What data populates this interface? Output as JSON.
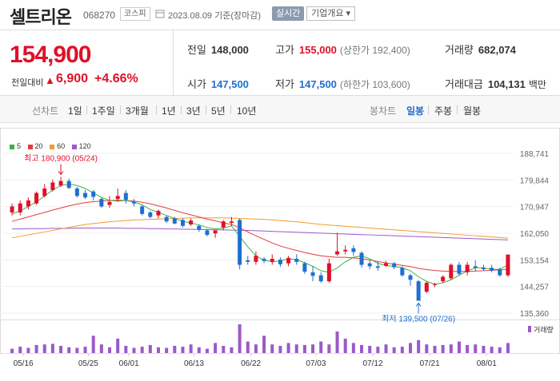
{
  "header": {
    "name": "셀트리온",
    "code": "068270",
    "market": "코스피",
    "as_of": "2023.08.09  기준(장마감)",
    "realtime": "실시간",
    "company_overview": "기업개요 ▾"
  },
  "quote": {
    "price": "154,900",
    "change_label": "전일대비",
    "change_arrow": "▲",
    "change_value": "6,900",
    "change_pct": "+4.66%",
    "prev_label": "전일",
    "prev": "148,000",
    "high_label": "고가",
    "high": "155,000",
    "upper_label": "(상한가 192,400)",
    "volume_label": "거래량",
    "volume": "682,074",
    "open_label": "시가",
    "open": "147,500",
    "low_label": "저가",
    "low": "147,500",
    "lower_label": "(하한가 103,600)",
    "amount_label": "거래대금",
    "amount": "104,131",
    "amount_unit": "백만"
  },
  "tabs": {
    "line_label": "선차트",
    "line_periods": [
      "1일",
      "1주일",
      "3개월",
      "1년",
      "3년",
      "5년",
      "10년"
    ],
    "candle_label": "봉차트",
    "candle_periods": [
      "일봉",
      "주봉",
      "월봉"
    ],
    "active_candle": "일봉"
  },
  "legend": [
    {
      "label": "5",
      "color": "#3cb043"
    },
    {
      "label": "20",
      "color": "#e83a3a"
    },
    {
      "label": "60",
      "color": "#f29b2e"
    },
    {
      "label": "120",
      "color": "#9b59c9"
    }
  ],
  "volume_legend": "거래량",
  "colors": {
    "up": "#e0102a",
    "down": "#1e6fd0"
  },
  "chart_data": {
    "type": "candlestick",
    "y_ticks": [
      "188,741",
      "179,844",
      "170,947",
      "162,050",
      "153,154",
      "144,257",
      "135,360"
    ],
    "ylim": [
      135360,
      188741
    ],
    "x_ticks": [
      "05/16",
      "05/25",
      "06/01",
      "06/13",
      "06/22",
      "07/03",
      "07/12",
      "07/21",
      "08/01"
    ],
    "max_annotation": "최고 180,900 (05/24)",
    "min_annotation": "최저 139,500 (07/26)",
    "candles": [
      {
        "o": 169000,
        "h": 172000,
        "c": 171000,
        "l": 168000
      },
      {
        "o": 169000,
        "h": 173000,
        "c": 172000,
        "l": 168000
      },
      {
        "o": 171000,
        "h": 174000,
        "c": 173000,
        "l": 170000
      },
      {
        "o": 172000,
        "h": 176000,
        "c": 175500,
        "l": 171500
      },
      {
        "o": 174500,
        "h": 178500,
        "c": 177000,
        "l": 174000
      },
      {
        "o": 176500,
        "h": 180000,
        "c": 179000,
        "l": 176000
      },
      {
        "o": 178000,
        "h": 180900,
        "c": 179500,
        "l": 177500
      },
      {
        "o": 179500,
        "h": 180300,
        "c": 177200,
        "l": 176800
      },
      {
        "o": 177000,
        "h": 177500,
        "c": 174500,
        "l": 174000
      },
      {
        "o": 175500,
        "h": 176500,
        "c": 174000,
        "l": 173500
      },
      {
        "o": 176000,
        "h": 176500,
        "c": 174200,
        "l": 173000
      },
      {
        "o": 173500,
        "h": 174000,
        "c": 171000,
        "l": 170500
      },
      {
        "o": 171500,
        "h": 174500,
        "c": 172500,
        "l": 170500
      },
      {
        "o": 173500,
        "h": 177000,
        "c": 174500,
        "l": 172500
      },
      {
        "o": 175500,
        "h": 176500,
        "c": 173200,
        "l": 172000
      },
      {
        "o": 172500,
        "h": 173500,
        "c": 172000,
        "l": 171000
      },
      {
        "o": 171000,
        "h": 171500,
        "c": 168500,
        "l": 168000
      },
      {
        "o": 169000,
        "h": 169500,
        "c": 167500,
        "l": 167000
      },
      {
        "o": 168000,
        "h": 170000,
        "c": 169500,
        "l": 167000
      },
      {
        "o": 167500,
        "h": 168000,
        "c": 166000,
        "l": 165500
      },
      {
        "o": 167000,
        "h": 167500,
        "c": 165300,
        "l": 165000
      },
      {
        "o": 166500,
        "h": 167000,
        "c": 164500,
        "l": 164000
      },
      {
        "o": 165000,
        "h": 167000,
        "c": 166300,
        "l": 164500
      },
      {
        "o": 164500,
        "h": 165000,
        "c": 163200,
        "l": 162500
      },
      {
        "o": 163000,
        "h": 163500,
        "c": 161500,
        "l": 161000
      },
      {
        "o": 162000,
        "h": 163000,
        "c": 163000,
        "l": 160500
      },
      {
        "o": 164000,
        "h": 166500,
        "c": 166000,
        "l": 163000
      },
      {
        "o": 165500,
        "h": 167500,
        "c": 166000,
        "l": 164500
      },
      {
        "o": 166500,
        "h": 167000,
        "c": 151500,
        "l": 150000
      },
      {
        "o": 153000,
        "h": 154500,
        "c": 152500,
        "l": 151500
      },
      {
        "o": 152500,
        "h": 156000,
        "c": 154500,
        "l": 151500
      },
      {
        "o": 153500,
        "h": 154000,
        "c": 152800,
        "l": 152000
      },
      {
        "o": 152500,
        "h": 155000,
        "c": 153500,
        "l": 151500
      },
      {
        "o": 153200,
        "h": 154000,
        "c": 151700,
        "l": 150800
      },
      {
        "o": 152000,
        "h": 154500,
        "c": 153800,
        "l": 151000
      },
      {
        "o": 153500,
        "h": 155000,
        "c": 152500,
        "l": 151500
      },
      {
        "o": 152000,
        "h": 152500,
        "c": 149200,
        "l": 148500
      },
      {
        "o": 149000,
        "h": 151000,
        "c": 147800,
        "l": 146000
      },
      {
        "o": 148000,
        "h": 149000,
        "c": 146000,
        "l": 145500
      },
      {
        "o": 146000,
        "h": 153500,
        "c": 152000,
        "l": 145500
      },
      {
        "o": 155000,
        "h": 162200,
        "c": 156000,
        "l": 154500
      },
      {
        "o": 156000,
        "h": 158000,
        "c": 156500,
        "l": 155000
      },
      {
        "o": 157000,
        "h": 158000,
        "c": 155800,
        "l": 154500
      },
      {
        "o": 155500,
        "h": 156000,
        "c": 151500,
        "l": 150500
      },
      {
        "o": 152000,
        "h": 153000,
        "c": 151000,
        "l": 150000
      },
      {
        "o": 151000,
        "h": 152500,
        "c": 150500,
        "l": 149500
      },
      {
        "o": 151200,
        "h": 152800,
        "c": 152000,
        "l": 150800
      },
      {
        "o": 152000,
        "h": 152500,
        "c": 150700,
        "l": 150000
      },
      {
        "o": 150500,
        "h": 151000,
        "c": 148000,
        "l": 147500
      },
      {
        "o": 148000,
        "h": 148500,
        "c": 146500,
        "l": 144500
      },
      {
        "o": 146000,
        "h": 146500,
        "c": 139500,
        "l": 139500
      },
      {
        "o": 142500,
        "h": 146000,
        "c": 145500,
        "l": 142000
      },
      {
        "o": 145000,
        "h": 145500,
        "c": 145000,
        "l": 144000
      },
      {
        "o": 146000,
        "h": 148000,
        "c": 147500,
        "l": 145500
      },
      {
        "o": 147000,
        "h": 152000,
        "c": 151500,
        "l": 146500
      },
      {
        "o": 151500,
        "h": 152500,
        "c": 148500,
        "l": 148000
      },
      {
        "o": 149000,
        "h": 152500,
        "c": 151500,
        "l": 148000
      },
      {
        "o": 151000,
        "h": 153000,
        "c": 150500,
        "l": 149500
      },
      {
        "o": 150500,
        "h": 151500,
        "c": 150000,
        "l": 149500
      },
      {
        "o": 150500,
        "h": 151500,
        "c": 149500,
        "l": 149000
      },
      {
        "o": 150000,
        "h": 150500,
        "c": 148000,
        "l": 147500
      },
      {
        "o": 148000,
        "h": 155000,
        "c": 154900,
        "l": 147500
      }
    ],
    "ma5": [
      168500,
      169500,
      171000,
      172500,
      174500,
      176500,
      178000,
      178500,
      178000,
      177000,
      175500,
      174000,
      173000,
      172800,
      173000,
      172500,
      171500,
      170000,
      169000,
      168000,
      167000,
      166000,
      165500,
      164800,
      164000,
      163500,
      163800,
      164500,
      161000,
      157500,
      154500,
      153000,
      152500,
      152800,
      153500,
      153200,
      152200,
      151000,
      149500,
      149000,
      150500,
      152500,
      154000,
      154500,
      153500,
      152000,
      151200,
      151000,
      150500,
      149500,
      147500,
      146000,
      145000,
      145500,
      146500,
      148000,
      149500,
      150500,
      150500,
      150000,
      150000,
      151500
    ],
    "ma20": [
      166000,
      166800,
      167500,
      168300,
      169000,
      169800,
      170500,
      171200,
      171800,
      172300,
      172600,
      172800,
      173000,
      173100,
      173000,
      172800,
      172400,
      171900,
      171200,
      170500,
      169700,
      168900,
      168200,
      167500,
      166800,
      166200,
      165500,
      165000,
      163800,
      162500,
      161200,
      160000,
      158800,
      157800,
      157000,
      156300,
      155600,
      155000,
      154500,
      154200,
      154000,
      154000,
      153800,
      153500,
      153100,
      152600,
      152100,
      151700,
      151300,
      150900,
      150300,
      149900,
      149600,
      149400,
      149300,
      149300,
      149300,
      149400,
      149500,
      149700,
      149800,
      150000
    ],
    "ma60": [
      160500,
      161000,
      161500,
      162000,
      162500,
      163000,
      163500,
      164000,
      164500,
      165000,
      165300,
      165600,
      165900,
      166100,
      166300,
      166500,
      166600,
      166700,
      166800,
      166900,
      167000,
      167100,
      167200,
      167200,
      167200,
      167200,
      167200,
      167100,
      167000,
      166900,
      166800,
      166700,
      166500,
      166300,
      166100,
      165900,
      165600,
      165300,
      165000,
      164800,
      164600,
      164400,
      164200,
      164000,
      163800,
      163600,
      163400,
      163200,
      163000,
      162800,
      162600,
      162400,
      162200,
      162000,
      161800,
      161600,
      161400,
      161200,
      161000,
      160800,
      160600,
      160400
    ],
    "ma120": [
      163500,
      163500,
      163600,
      163600,
      163600,
      163700,
      163700,
      163700,
      163800,
      163800,
      163800,
      163800,
      163800,
      163800,
      163700,
      163700,
      163700,
      163600,
      163600,
      163500,
      163500,
      163400,
      163400,
      163300,
      163300,
      163200,
      163200,
      163100,
      163100,
      163000,
      162900,
      162800,
      162700,
      162600,
      162500,
      162400,
      162300,
      162200,
      162100,
      162000,
      161900,
      161800,
      161700,
      161600,
      161500,
      161400,
      161300,
      161200,
      161100,
      161000,
      160900,
      160800,
      160700,
      160600,
      160500,
      160400,
      160300,
      160200,
      160100,
      160000,
      159900,
      159800
    ],
    "volume": [
      0.15,
      0.22,
      0.18,
      0.28,
      0.3,
      0.32,
      0.25,
      0.2,
      0.18,
      0.22,
      0.6,
      0.3,
      0.2,
      0.5,
      0.25,
      0.18,
      0.22,
      0.28,
      0.2,
      0.18,
      0.25,
      0.22,
      0.3,
      0.2,
      0.15,
      0.35,
      0.25,
      0.2,
      1.0,
      0.4,
      0.3,
      0.6,
      0.3,
      0.25,
      0.35,
      0.3,
      0.28,
      0.3,
      0.4,
      0.3,
      0.75,
      0.5,
      0.35,
      0.28,
      0.25,
      0.22,
      0.3,
      0.2,
      0.22,
      0.35,
      0.45,
      0.3,
      0.25,
      0.28,
      0.3,
      0.4,
      0.28,
      0.3,
      0.25,
      0.22,
      0.2,
      0.35
    ]
  }
}
